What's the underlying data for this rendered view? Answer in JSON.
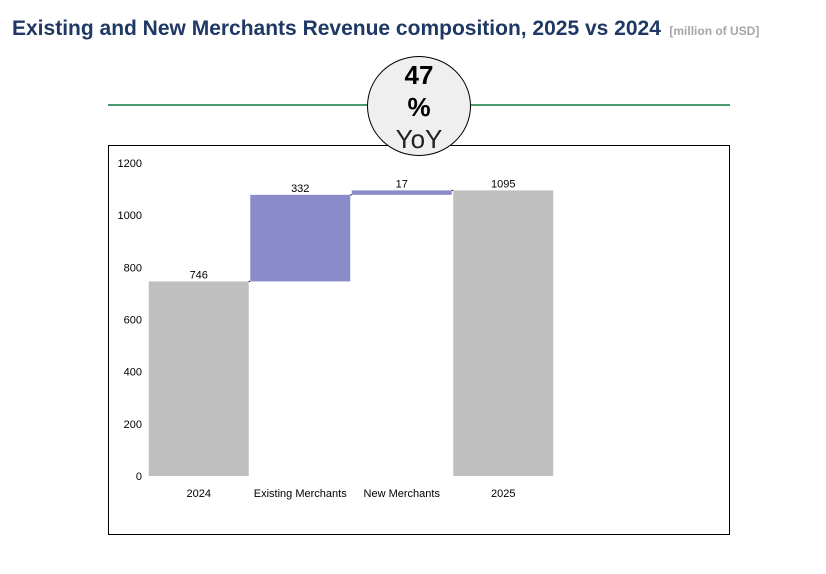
{
  "header": {
    "title": "Existing and New Merchants Revenue composition, 2025 vs 2024",
    "unit": "[million of USD]"
  },
  "badge": {
    "value": "47",
    "symbol": "%",
    "label": "YoY"
  },
  "colors": {
    "title": "#1f3864",
    "unit": "#a6a6a6",
    "divider": "#4a9a6e",
    "total_bar": "#bfbfbf",
    "delta_bar": "#8a8bc9",
    "connector": "#000000"
  },
  "chart_data": {
    "type": "waterfall",
    "title": "Existing and New Merchants Revenue composition, 2025 vs 2024",
    "unit": "million of USD",
    "categories": [
      "2024",
      "Existing Merchants",
      "New Merchants",
      "2025"
    ],
    "values": [
      746,
      332,
      17,
      1095
    ],
    "kinds": [
      "total",
      "delta",
      "delta",
      "total"
    ],
    "data_labels": [
      "746",
      "332",
      "17",
      "1095"
    ],
    "ylim": [
      0,
      1200
    ],
    "yticks": [
      0,
      200,
      400,
      600,
      800,
      1000,
      1200
    ],
    "grid": false,
    "legend": "none"
  }
}
